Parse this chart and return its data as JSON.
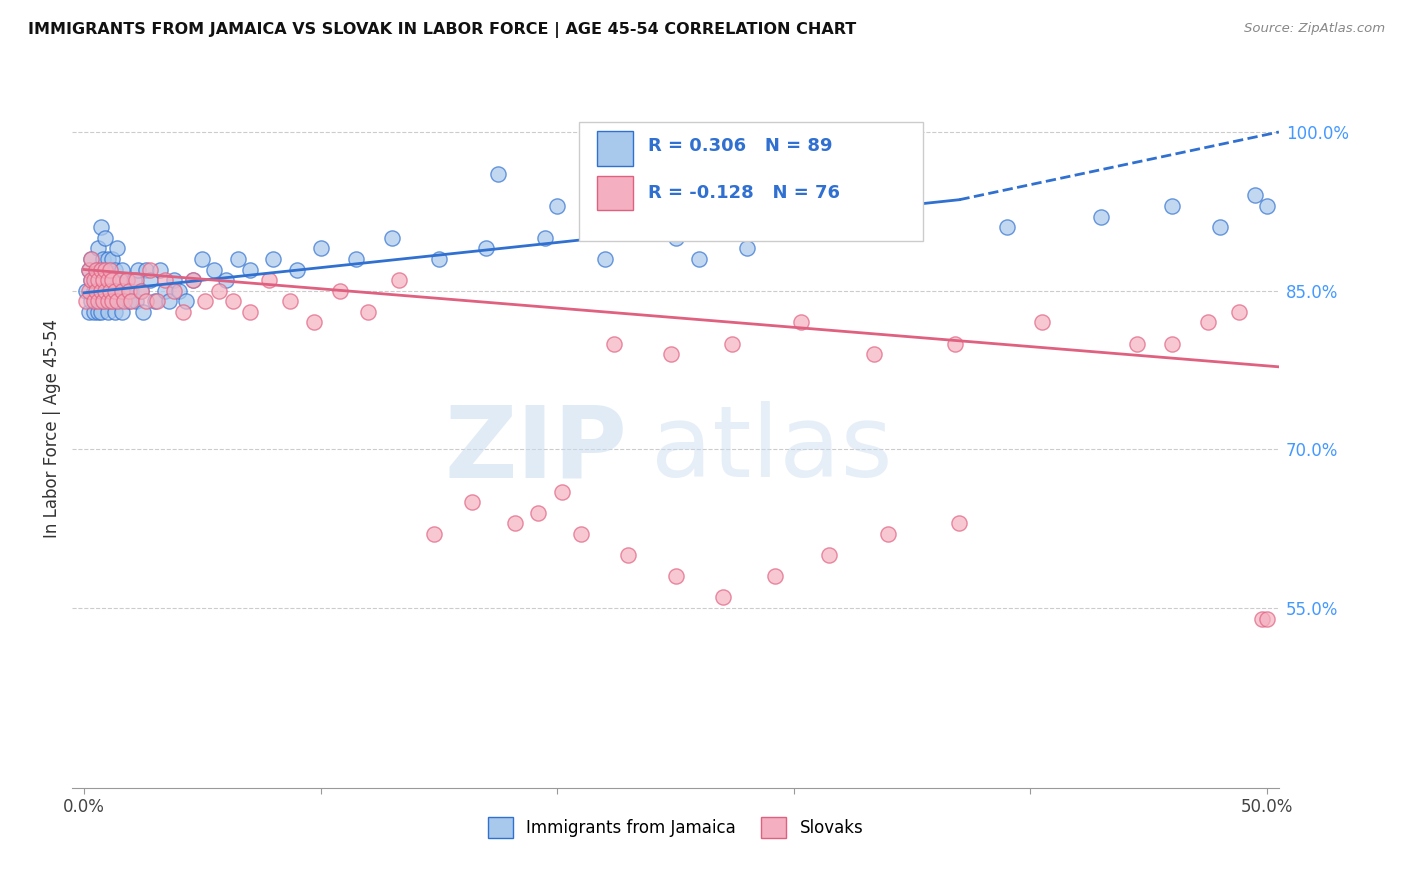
{
  "title": "IMMIGRANTS FROM JAMAICA VS SLOVAK IN LABOR FORCE | AGE 45-54 CORRELATION CHART",
  "source": "Source: ZipAtlas.com",
  "ylabel": "In Labor Force | Age 45-54",
  "xlim": [
    -0.005,
    0.505
  ],
  "ylim": [
    0.38,
    1.06
  ],
  "x_ticks": [
    0.0,
    0.1,
    0.2,
    0.3,
    0.4,
    0.5
  ],
  "x_tick_labels": [
    "0.0%",
    "",
    "",
    "",
    "",
    "50.0%"
  ],
  "y_ticks_right": [
    0.55,
    0.7,
    0.85,
    1.0
  ],
  "y_tick_labels_right": [
    "55.0%",
    "70.0%",
    "85.0%",
    "100.0%"
  ],
  "legend_jamaica": "Immigrants from Jamaica",
  "legend_slovak": "Slovaks",
  "R_jamaica": 0.306,
  "N_jamaica": 89,
  "R_slovak": -0.128,
  "N_slovak": 76,
  "color_jamaica": "#A8C8EC",
  "color_slovak": "#F4B0C0",
  "color_trend_jamaica": "#3070D0",
  "color_trend_slovak": "#E06080",
  "color_legend_r": "#3070D0",
  "watermark_zip": "ZIP",
  "watermark_atlas": "atlas",
  "background": "#FFFFFF",
  "jamaica_x": [
    0.001,
    0.002,
    0.002,
    0.003,
    0.003,
    0.003,
    0.004,
    0.004,
    0.005,
    0.005,
    0.005,
    0.006,
    0.006,
    0.006,
    0.006,
    0.007,
    0.007,
    0.007,
    0.007,
    0.008,
    0.008,
    0.008,
    0.008,
    0.009,
    0.009,
    0.009,
    0.01,
    0.01,
    0.01,
    0.011,
    0.011,
    0.011,
    0.012,
    0.012,
    0.013,
    0.013,
    0.014,
    0.014,
    0.015,
    0.015,
    0.016,
    0.016,
    0.017,
    0.018,
    0.019,
    0.02,
    0.021,
    0.022,
    0.023,
    0.024,
    0.025,
    0.026,
    0.028,
    0.03,
    0.032,
    0.034,
    0.036,
    0.038,
    0.04,
    0.043,
    0.046,
    0.05,
    0.055,
    0.06,
    0.065,
    0.07,
    0.08,
    0.09,
    0.1,
    0.115,
    0.13,
    0.15,
    0.17,
    0.195,
    0.22,
    0.25,
    0.28,
    0.31,
    0.35,
    0.39,
    0.43,
    0.46,
    0.48,
    0.495,
    0.5,
    0.175,
    0.2,
    0.225,
    0.26
  ],
  "jamaica_y": [
    0.85,
    0.87,
    0.83,
    0.86,
    0.84,
    0.88,
    0.85,
    0.83,
    0.87,
    0.84,
    0.86,
    0.83,
    0.87,
    0.85,
    0.89,
    0.84,
    0.87,
    0.83,
    0.91,
    0.85,
    0.88,
    0.84,
    0.86,
    0.84,
    0.87,
    0.9,
    0.83,
    0.86,
    0.88,
    0.84,
    0.87,
    0.85,
    0.84,
    0.88,
    0.83,
    0.87,
    0.85,
    0.89,
    0.84,
    0.86,
    0.83,
    0.87,
    0.85,
    0.86,
    0.84,
    0.85,
    0.86,
    0.84,
    0.87,
    0.85,
    0.83,
    0.87,
    0.86,
    0.84,
    0.87,
    0.85,
    0.84,
    0.86,
    0.85,
    0.84,
    0.86,
    0.88,
    0.87,
    0.86,
    0.88,
    0.87,
    0.88,
    0.87,
    0.89,
    0.88,
    0.9,
    0.88,
    0.89,
    0.9,
    0.88,
    0.9,
    0.89,
    0.91,
    0.91,
    0.91,
    0.92,
    0.93,
    0.91,
    0.94,
    0.93,
    0.96,
    0.93,
    0.91,
    0.88
  ],
  "slovak_x": [
    0.001,
    0.002,
    0.002,
    0.003,
    0.003,
    0.004,
    0.004,
    0.005,
    0.005,
    0.006,
    0.006,
    0.007,
    0.007,
    0.008,
    0.008,
    0.009,
    0.009,
    0.01,
    0.01,
    0.011,
    0.011,
    0.012,
    0.012,
    0.013,
    0.014,
    0.015,
    0.016,
    0.017,
    0.018,
    0.019,
    0.02,
    0.022,
    0.024,
    0.026,
    0.028,
    0.031,
    0.034,
    0.038,
    0.042,
    0.046,
    0.051,
    0.057,
    0.063,
    0.07,
    0.078,
    0.087,
    0.097,
    0.108,
    0.12,
    0.133,
    0.148,
    0.164,
    0.182,
    0.202,
    0.224,
    0.248,
    0.274,
    0.303,
    0.334,
    0.368,
    0.405,
    0.445,
    0.46,
    0.475,
    0.488,
    0.498,
    0.5,
    0.192,
    0.21,
    0.23,
    0.25,
    0.27,
    0.292,
    0.315,
    0.34,
    0.37
  ],
  "slovak_y": [
    0.84,
    0.87,
    0.85,
    0.86,
    0.88,
    0.84,
    0.86,
    0.85,
    0.87,
    0.84,
    0.86,
    0.85,
    0.87,
    0.84,
    0.86,
    0.85,
    0.87,
    0.84,
    0.86,
    0.85,
    0.87,
    0.84,
    0.86,
    0.85,
    0.84,
    0.86,
    0.85,
    0.84,
    0.86,
    0.85,
    0.84,
    0.86,
    0.85,
    0.84,
    0.87,
    0.84,
    0.86,
    0.85,
    0.83,
    0.86,
    0.84,
    0.85,
    0.84,
    0.83,
    0.86,
    0.84,
    0.82,
    0.85,
    0.83,
    0.86,
    0.62,
    0.65,
    0.63,
    0.66,
    0.8,
    0.79,
    0.8,
    0.82,
    0.79,
    0.8,
    0.82,
    0.8,
    0.8,
    0.82,
    0.83,
    0.54,
    0.54,
    0.64,
    0.62,
    0.6,
    0.58,
    0.56,
    0.58,
    0.6,
    0.62,
    0.63
  ],
  "trend_jamaica_x0": 0.0,
  "trend_jamaica_x1": 0.37,
  "trend_jamaica_y0": 0.848,
  "trend_jamaica_y1": 0.936,
  "trend_jamaica_dash_x0": 0.37,
  "trend_jamaica_dash_x1": 0.505,
  "trend_jamaica_dash_y0": 0.936,
  "trend_jamaica_dash_y1": 1.0,
  "trend_slovak_x0": 0.0,
  "trend_slovak_x1": 0.505,
  "trend_slovak_y0": 0.87,
  "trend_slovak_y1": 0.778
}
